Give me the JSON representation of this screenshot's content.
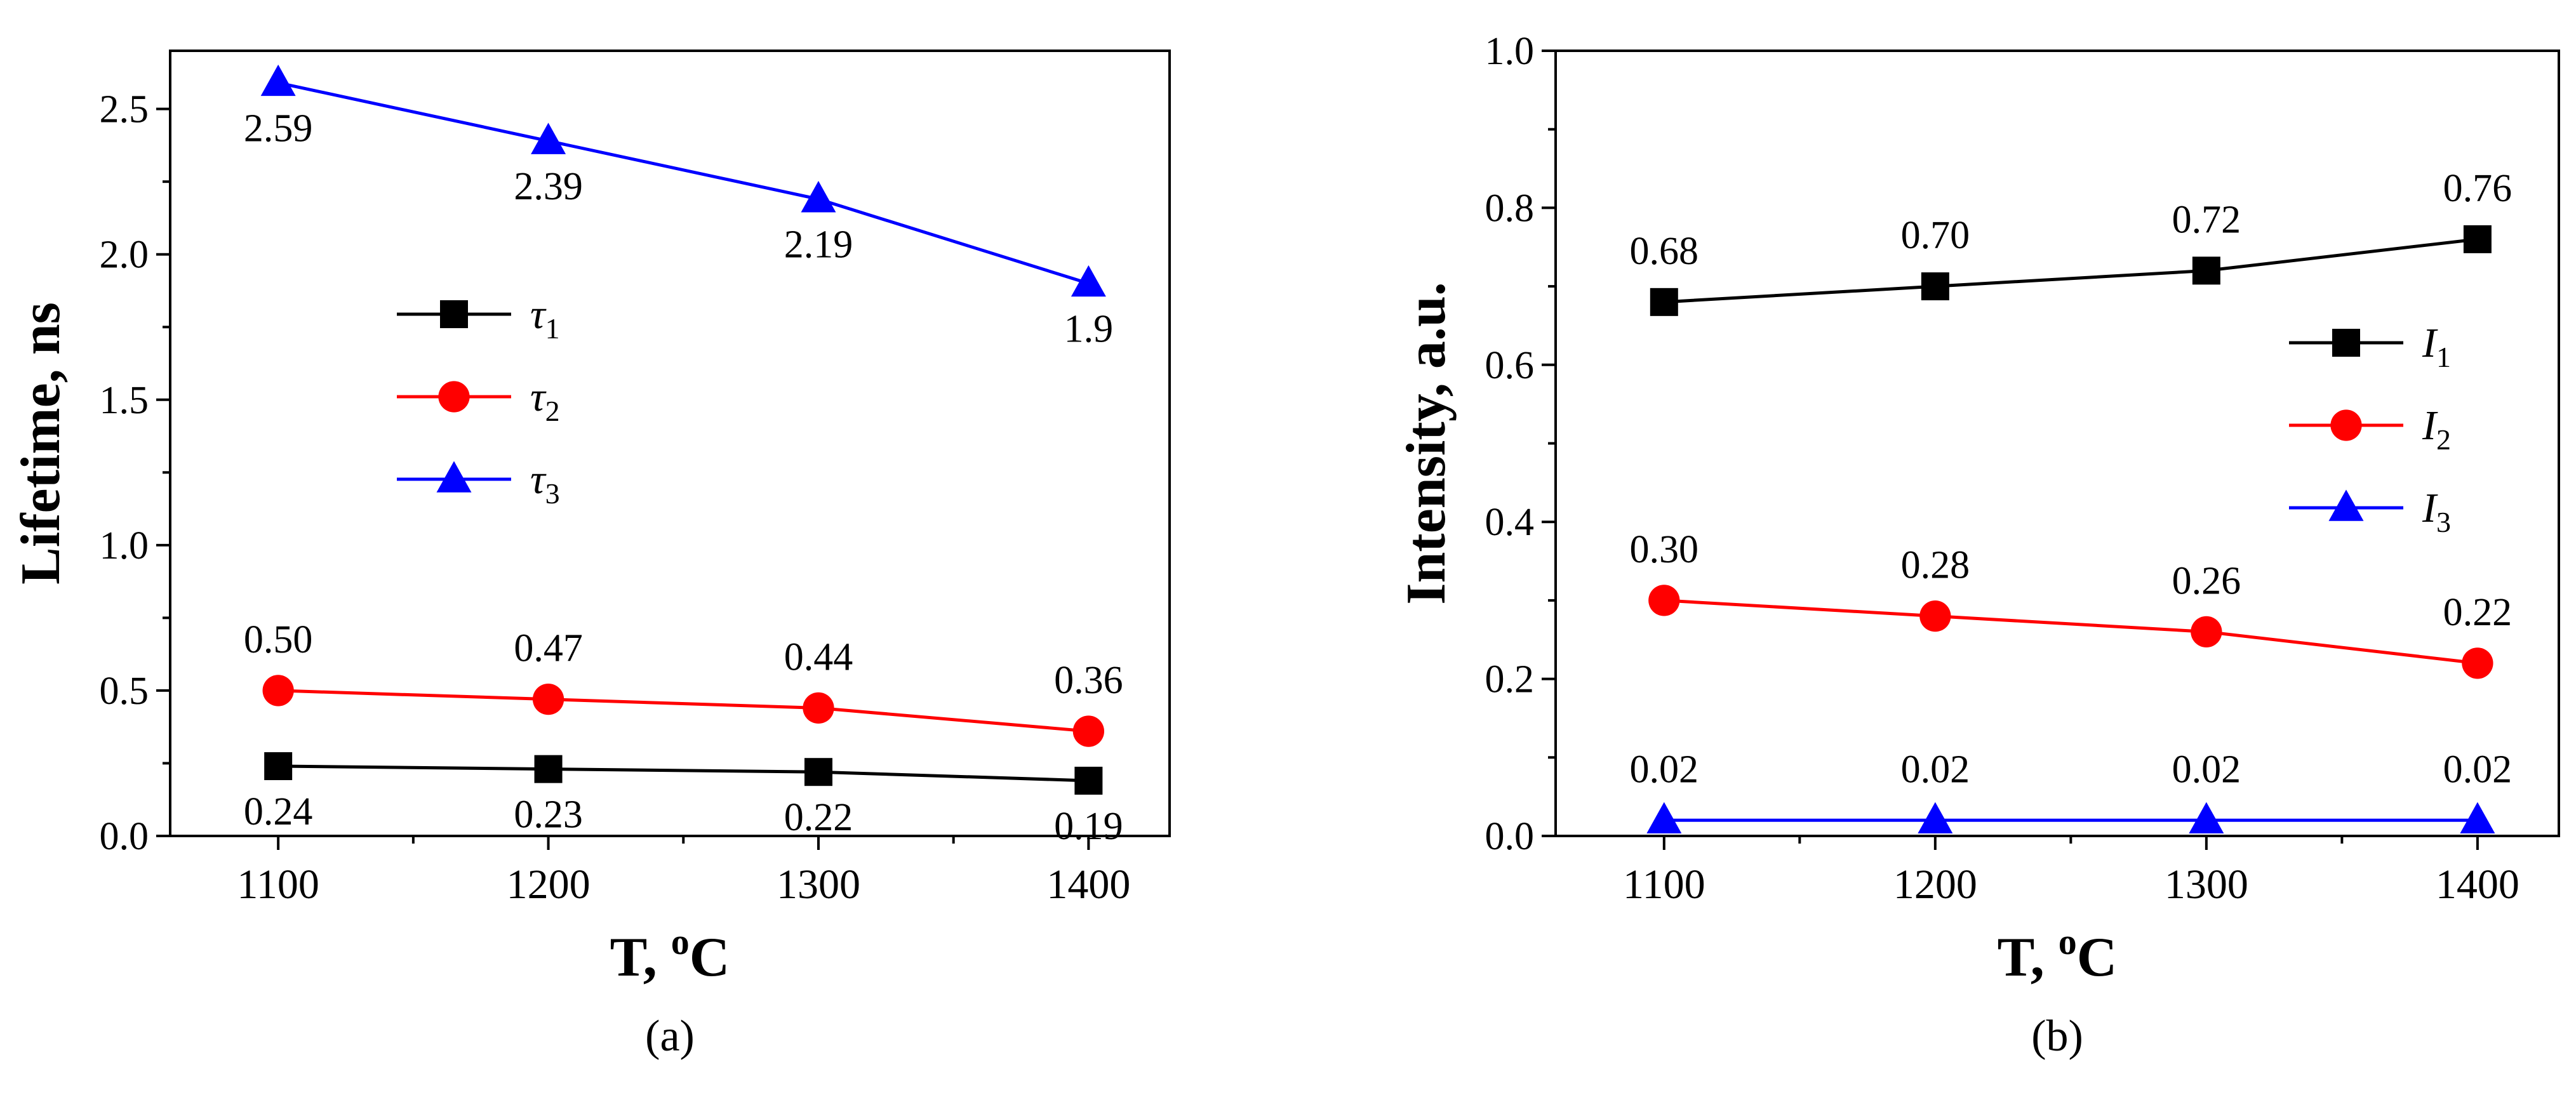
{
  "chart_data": [
    {
      "type": "line",
      "panel_label": "(a)",
      "ylabel": "Lifetime, ns",
      "xlabel_main": "T, ",
      "xlabel_sup": "o",
      "xlabel_unit": "C",
      "xlim": [
        1060,
        1430
      ],
      "ylim": [
        0,
        2.7
      ],
      "xticks": [
        1100,
        1200,
        1300,
        1400
      ],
      "yticks": [
        0.0,
        0.5,
        1.0,
        1.5,
        2.0,
        2.5
      ],
      "ytick_labels": [
        "0.0",
        "0.5",
        "1.0",
        "1.5",
        "2.0",
        "2.5"
      ],
      "legend_position": "center-left",
      "series": [
        {
          "name": "τ1",
          "symbol": "τ",
          "sub": "1",
          "color": "#000000",
          "marker": "square",
          "x": [
            1100,
            1200,
            1300,
            1400
          ],
          "values": [
            0.24,
            0.23,
            0.22,
            0.19
          ],
          "labels": [
            "0.24",
            "0.23",
            "0.22",
            "0.19"
          ],
          "label_pos": "below"
        },
        {
          "name": "τ2",
          "symbol": "τ",
          "sub": "2",
          "color": "#ff0000",
          "marker": "circle",
          "x": [
            1100,
            1200,
            1300,
            1400
          ],
          "values": [
            0.5,
            0.47,
            0.44,
            0.36
          ],
          "labels": [
            "0.50",
            "0.47",
            "0.44",
            "0.36"
          ],
          "label_pos": "above"
        },
        {
          "name": "τ3",
          "symbol": "τ",
          "sub": "3",
          "color": "#0000ff",
          "marker": "triangle",
          "x": [
            1100,
            1200,
            1300,
            1400
          ],
          "values": [
            2.59,
            2.39,
            2.19,
            1.9
          ],
          "labels": [
            "2.59",
            "2.39",
            "2.19",
            "1.9"
          ],
          "label_pos": "below"
        }
      ]
    },
    {
      "type": "line",
      "panel_label": "(b)",
      "ylabel": "Intensity, a.u.",
      "xlabel_main": "T, ",
      "xlabel_sup": "o",
      "xlabel_unit": "C",
      "xlim": [
        1060,
        1430
      ],
      "ylim": [
        0,
        1.0
      ],
      "xticks": [
        1100,
        1200,
        1300,
        1400
      ],
      "yticks": [
        0.0,
        0.2,
        0.4,
        0.6,
        0.8,
        1.0
      ],
      "ytick_labels": [
        "0.0",
        "0.2",
        "0.4",
        "0.6",
        "0.8",
        "1.0"
      ],
      "legend_position": "center-right",
      "series": [
        {
          "name": "I1",
          "symbol": "I",
          "sub": "1",
          "color": "#000000",
          "marker": "square",
          "x": [
            1100,
            1200,
            1300,
            1400
          ],
          "values": [
            0.68,
            0.7,
            0.72,
            0.76
          ],
          "labels": [
            "0.68",
            "0.70",
            "0.72",
            "0.76"
          ],
          "label_pos": "above"
        },
        {
          "name": "I2",
          "symbol": "I",
          "sub": "2",
          "color": "#ff0000",
          "marker": "circle",
          "x": [
            1100,
            1200,
            1300,
            1400
          ],
          "values": [
            0.3,
            0.28,
            0.26,
            0.22
          ],
          "labels": [
            "0.30",
            "0.28",
            "0.26",
            "0.22"
          ],
          "label_pos": "above"
        },
        {
          "name": "I3",
          "symbol": "I",
          "sub": "3",
          "color": "#0000ff",
          "marker": "triangle",
          "x": [
            1100,
            1200,
            1300,
            1400
          ],
          "values": [
            0.02,
            0.02,
            0.02,
            0.02
          ],
          "labels": [
            "0.02",
            "0.02",
            "0.02",
            "0.02"
          ],
          "label_pos": "above"
        }
      ]
    }
  ]
}
